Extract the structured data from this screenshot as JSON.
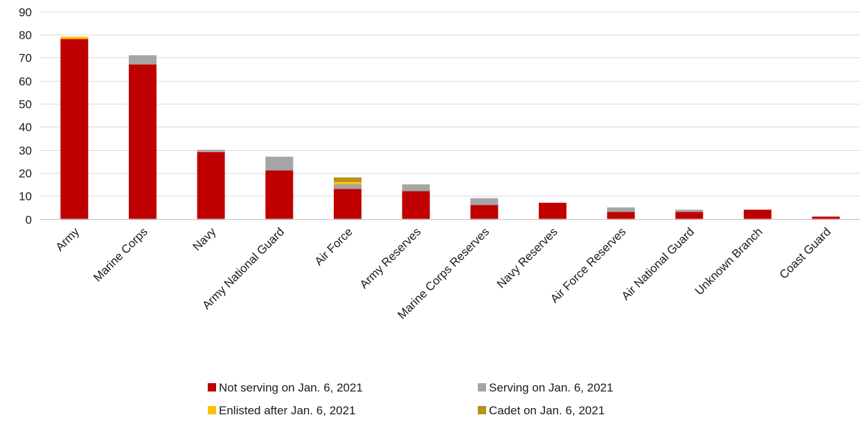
{
  "chart_data": {
    "type": "bar",
    "stacked": true,
    "title": "",
    "xlabel": "",
    "ylabel": "",
    "ylim": [
      0,
      90
    ],
    "yticks": [
      0,
      10,
      20,
      30,
      40,
      50,
      60,
      70,
      80,
      90
    ],
    "grid": true,
    "legend_position": "bottom",
    "categories": [
      "Army",
      "Marine Corps",
      "Navy",
      "Army National Guard",
      "Air Force",
      "Army Reserves",
      "Marine Corps Reserves",
      "Navy Reserves",
      "Air Force Reserves",
      "Air National Guard",
      "Unknown Branch",
      "Coast Guard"
    ],
    "series": [
      {
        "name": "Not serving on Jan. 6, 2021",
        "color": "#c00000",
        "values": [
          78,
          67,
          29,
          21,
          13,
          12,
          6,
          7,
          3,
          3,
          4,
          1
        ]
      },
      {
        "name": "Serving on Jan. 6, 2021",
        "color": "#a5a5a5",
        "values": [
          0,
          4,
          1,
          6,
          2,
          3,
          3,
          0,
          2,
          1,
          0,
          0
        ]
      },
      {
        "name": "Enlisted after Jan. 6, 2021",
        "color": "#ffc000",
        "values": [
          1,
          0,
          0,
          0,
          1,
          0,
          0,
          0,
          0,
          0,
          0,
          0
        ]
      },
      {
        "name": "Cadet on Jan. 6, 2021",
        "color": "#b8901a",
        "values": [
          0,
          0,
          0,
          0,
          2,
          0,
          0,
          0,
          0,
          0,
          0,
          0
        ]
      }
    ]
  }
}
